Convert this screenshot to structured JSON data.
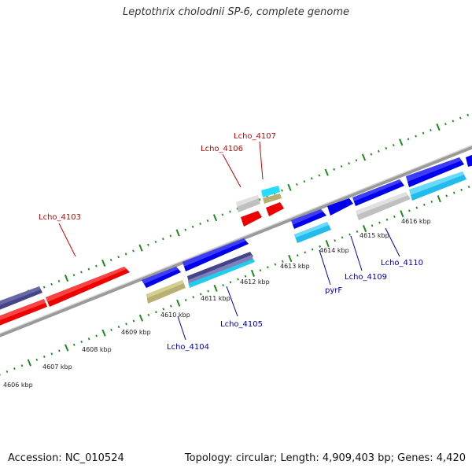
{
  "title": "Leptothrix cholodnii SP-6, complete genome",
  "footer": {
    "accession": "Accession: NC_010524",
    "stats": "Topology: circular; Length: 4,909,403 bp; Genes: 4,420"
  },
  "colors": {
    "backbone": "#8a8a8a",
    "tick_green": "#1e8a1e",
    "red_gene": "#ff0000",
    "blue_gene": "#0000ee",
    "navy_gene": "#44448a",
    "khaki_gene": "#b8b070",
    "cyan_gene": "#22ccee",
    "gray_gene": "#c8c8c8",
    "red_label": "#cc0000",
    "blue_label": "#0000aa"
  },
  "tick_labels": [
    "4606 kbp",
    "4607 kbp",
    "4608 kbp",
    "4609 kbp",
    "4610 kbp",
    "4611 kbp",
    "4612 kbp",
    "4613 kbp",
    "4614 kbp",
    "4615 kbp",
    "4616 kbp"
  ],
  "gene_labels_forward": [
    "Lcho_4103",
    "Lcho_4106",
    "Lcho_4107"
  ],
  "gene_labels_reverse": [
    "Lcho_4104",
    "Lcho_4105",
    "pyrF",
    "Lcho_4109",
    "Lcho_4110"
  ]
}
